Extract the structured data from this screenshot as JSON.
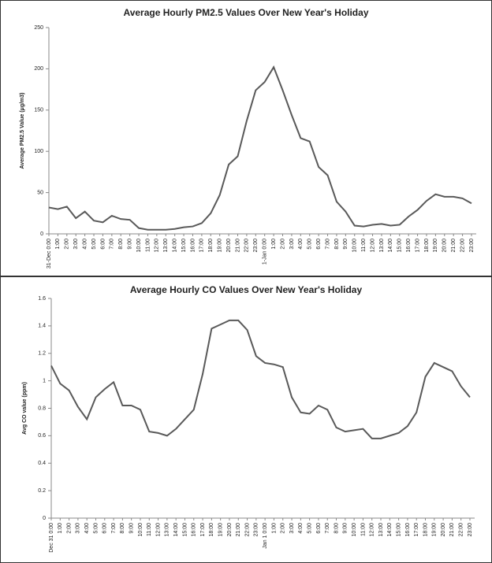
{
  "chart_data": [
    {
      "type": "line",
      "title": "Average Hourly PM2.5 Values Over New Year's Holiday",
      "y_label": "Average PM2.5 Value (μg/m3)",
      "categories": [
        "31-Dec 0:00",
        "1:00",
        "2:00",
        "3:00",
        "4:00",
        "5:00",
        "6:00",
        "7:00",
        "8:00",
        "9:00",
        "10:00",
        "11:00",
        "12:00",
        "13:00",
        "14:00",
        "15:00",
        "16:00",
        "17:00",
        "18:00",
        "19:00",
        "20:00",
        "21:00",
        "22:00",
        "23:00",
        "1-Jan 0:00",
        "1:00",
        "2:00",
        "3:00",
        "4:00",
        "5:00",
        "6:00",
        "7:00",
        "8:00",
        "9:00",
        "10:00",
        "11:00",
        "12:00",
        "13:00",
        "14:00",
        "15:00",
        "16:00",
        "17:00",
        "18:00",
        "19:00",
        "20:00",
        "21:00",
        "22:00",
        "23:00"
      ],
      "values": [
        32,
        30,
        33,
        19,
        27,
        16,
        14,
        22,
        18,
        17,
        7,
        5,
        5,
        5,
        6,
        8,
        9,
        13,
        25,
        47,
        84,
        94,
        137,
        174,
        184,
        202,
        174,
        144,
        116,
        112,
        81,
        71,
        39,
        27,
        10,
        9,
        11,
        12,
        10,
        11,
        21,
        29,
        40,
        48,
        45,
        45,
        43,
        37
      ],
      "color": "#595959",
      "ylim": [
        0,
        250
      ],
      "yticks": [
        0,
        50,
        100,
        150,
        200,
        250
      ]
    },
    {
      "type": "line",
      "title": "Average Hourly CO Values Over New Year's Holiday",
      "y_label": "Avg CO value (ppm)",
      "categories": [
        "Dec 31 0:00",
        "1:00",
        "2:00",
        "3:00",
        "4:00",
        "5:00",
        "6:00",
        "7:00",
        "8:00",
        "9:00",
        "10:00",
        "11:00",
        "12:00",
        "13:00",
        "14:00",
        "15:00",
        "16:00",
        "17:00",
        "18:00",
        "19:00",
        "20:00",
        "21:00",
        "22:00",
        "23:00",
        "Jan 1 0:00",
        "1:00",
        "2:00",
        "3:00",
        "4:00",
        "5:00",
        "6:00",
        "7:00",
        "8:00",
        "9:00",
        "10:00",
        "11:00",
        "12:00",
        "13:00",
        "14:00",
        "15:00",
        "16:00",
        "17:00",
        "18:00",
        "19:00",
        "20:00",
        "21:00",
        "22:00",
        "23:00"
      ],
      "values": [
        1.11,
        0.98,
        0.93,
        0.81,
        0.72,
        0.88,
        0.94,
        0.99,
        0.82,
        0.82,
        0.79,
        0.63,
        0.62,
        0.6,
        0.65,
        0.72,
        0.79,
        1.05,
        1.38,
        1.41,
        1.44,
        1.44,
        1.37,
        1.18,
        1.13,
        1.12,
        1.1,
        0.88,
        0.77,
        0.76,
        0.82,
        0.79,
        0.66,
        0.63,
        0.64,
        0.65,
        0.58,
        0.58,
        0.6,
        0.62,
        0.67,
        0.77,
        1.03,
        1.13,
        1.1,
        1.07,
        0.96,
        0.88
      ],
      "color": "#595959",
      "ylim": [
        0,
        1.6
      ],
      "yticks": [
        0,
        0.2,
        0.4,
        0.6,
        0.8,
        1,
        1.2,
        1.4,
        1.6
      ]
    }
  ]
}
